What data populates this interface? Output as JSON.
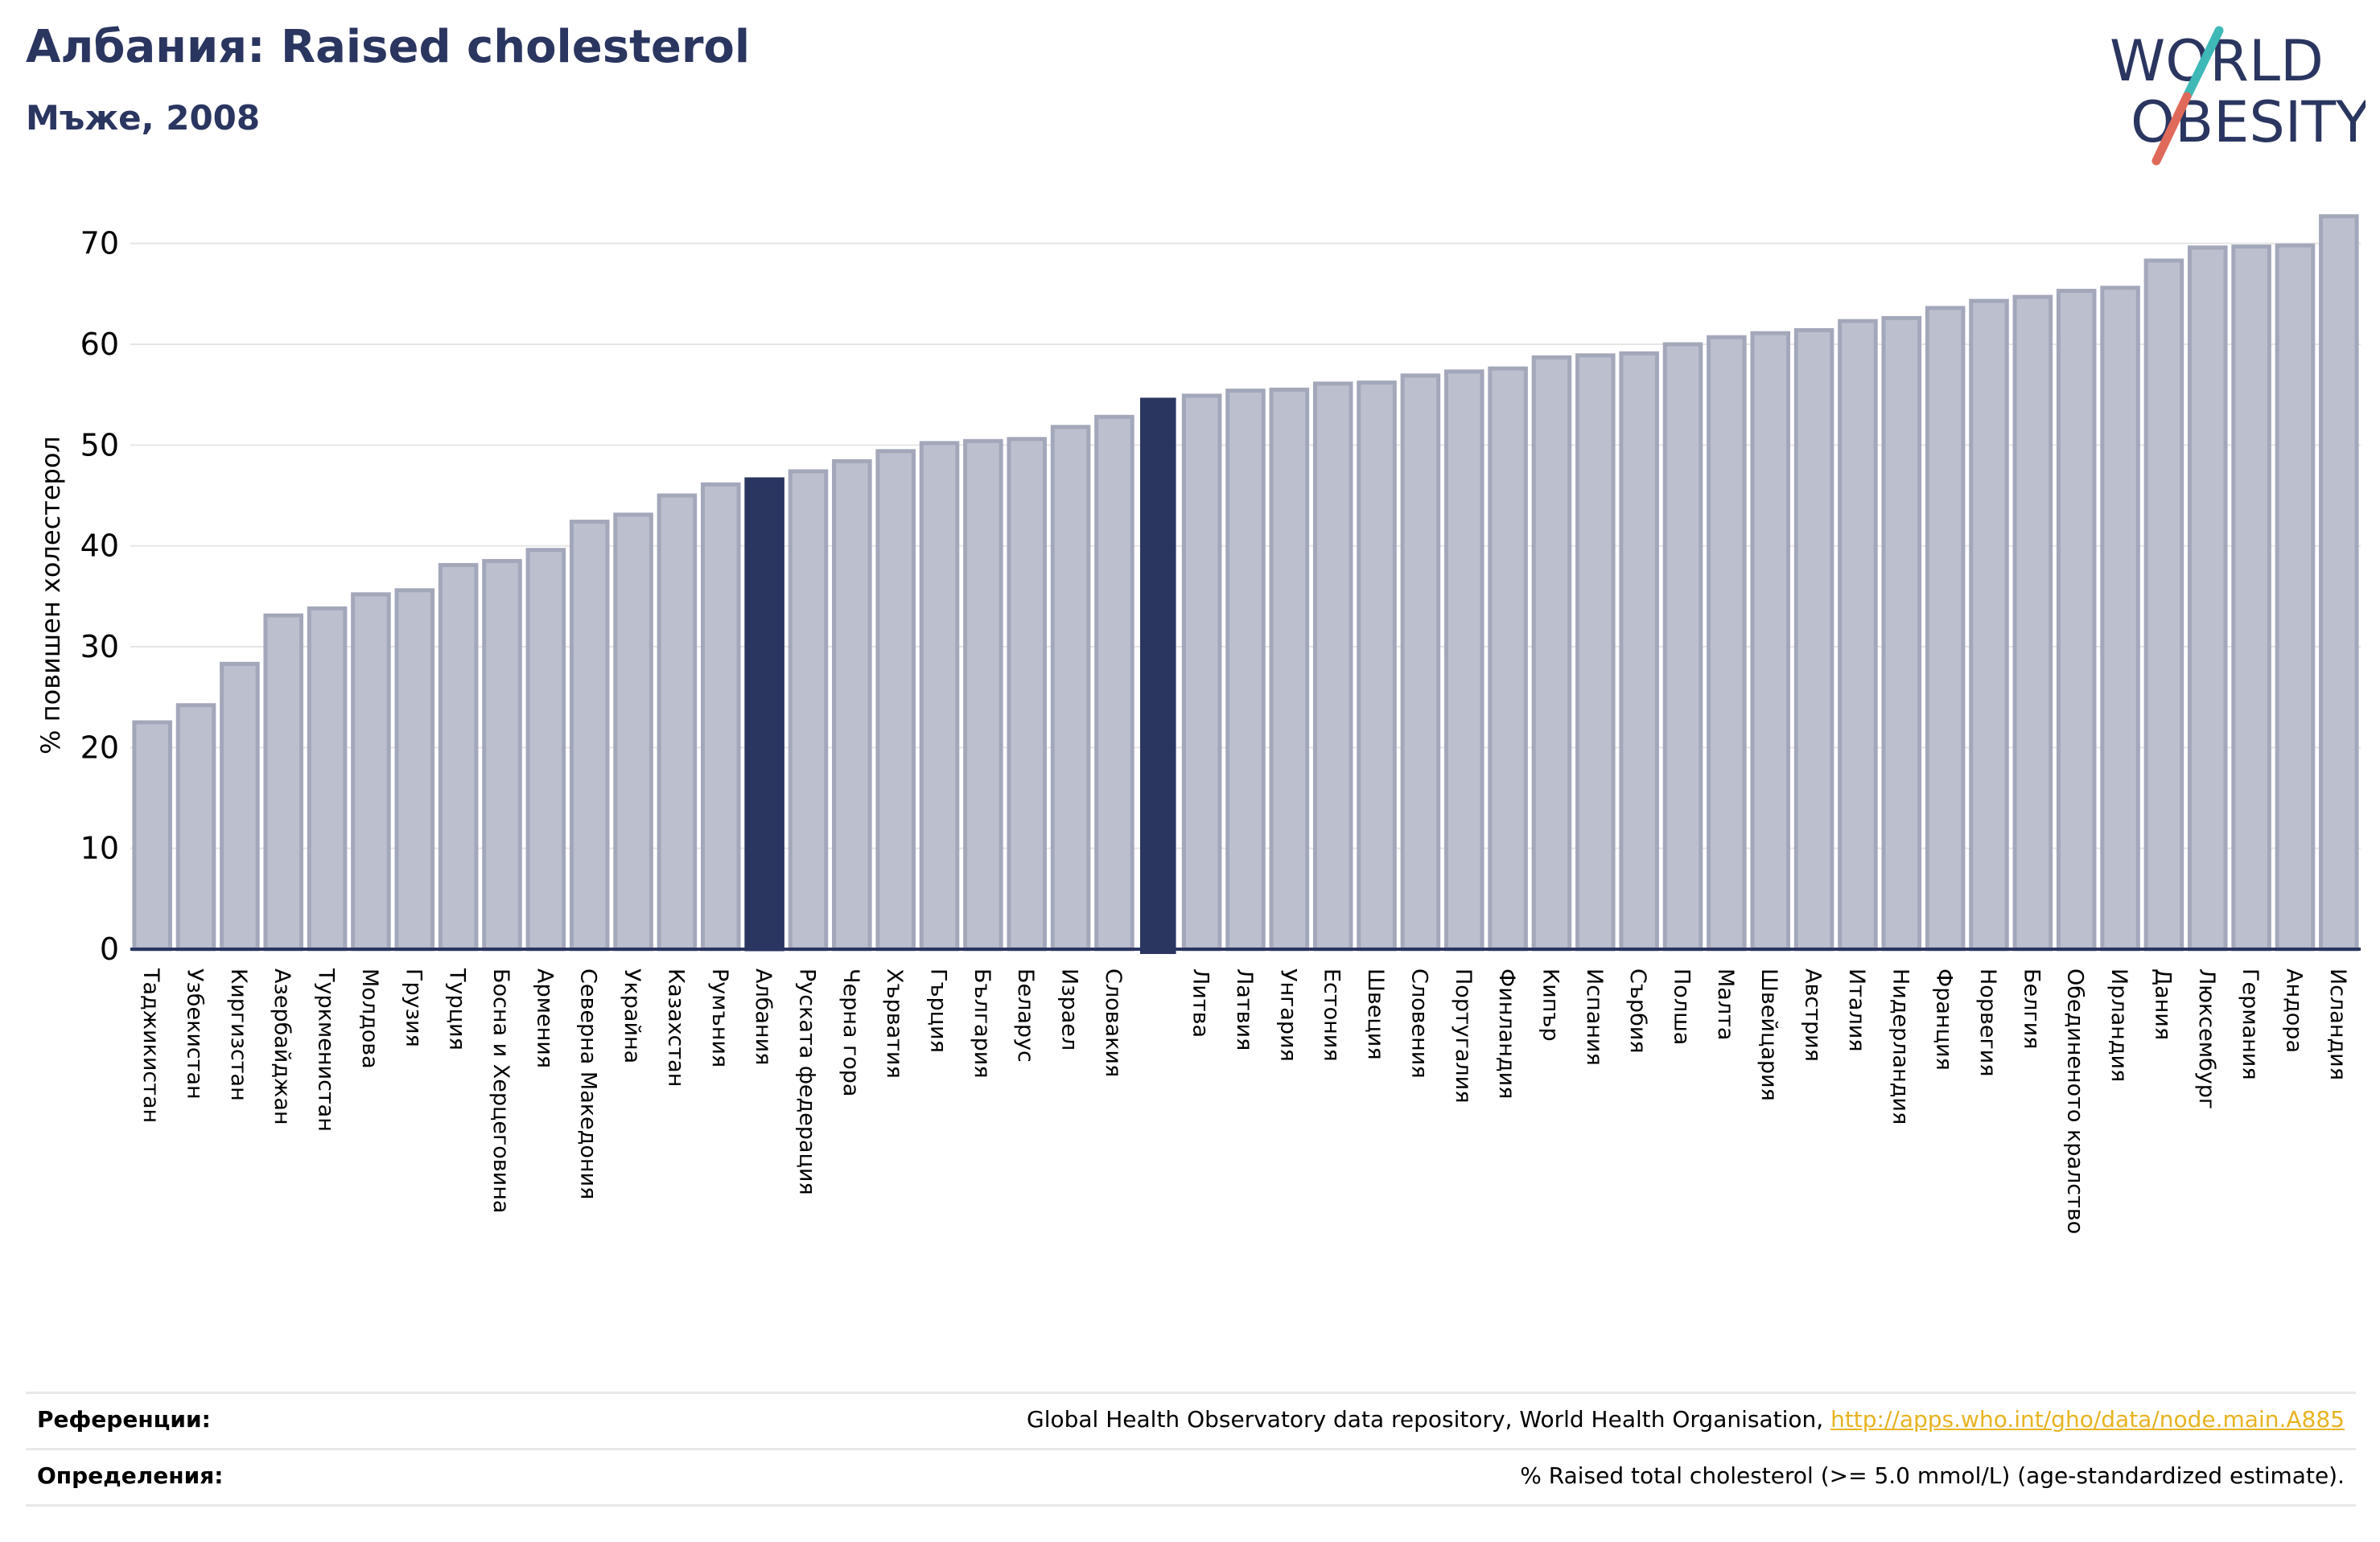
{
  "header": {
    "title": "Албания: Raised cholesterol",
    "subtitle": "Мъже, 2008"
  },
  "logo": {
    "line1": "WORLD",
    "line2": "OBESITY",
    "text_color": "#2a3560",
    "accent_teal": "#3fb8b8",
    "accent_coral": "#e06a5a"
  },
  "chart_data": {
    "type": "bar",
    "ylabel": "% повишен холестерол",
    "xlabel": "",
    "ylim": [
      0,
      75
    ],
    "yticks": [
      0,
      10,
      20,
      30,
      40,
      50,
      60,
      70
    ],
    "grid": true,
    "colors": {
      "bar": "#bcbfcd",
      "bar_edge": "#a3a7ba",
      "highlight": "#2a3560"
    },
    "highlight_index": 14,
    "gap_after_index": 22,
    "gap_bar_value": 54.7,
    "categories": [
      "Таджикистан",
      "Узбекистан",
      "Киргизстан",
      "Азербайджан",
      "Туркменистан",
      "Молдова",
      "Грузия",
      "Турция",
      "Босна и Херцеговина",
      "Армения",
      "Северна Македония",
      "Украйна",
      "Казахстан",
      "Румъния",
      "Албания",
      "Руската федерация",
      "Черна гора",
      "Хърватия",
      "Гърция",
      "България",
      "Беларус",
      "Израел",
      "Словакия",
      "Литва",
      "Латвия",
      "Унгария",
      "Естония",
      "Швеция",
      "Словения",
      "Португалия",
      "Финландия",
      "Кипър",
      "Испания",
      "Сърбия",
      "Полша",
      "Малта",
      "Швейцария",
      "Австрия",
      "Италия",
      "Нидерландия",
      "Франция",
      "Норвегия",
      "Белгия",
      "Обединеното кралство",
      "Ирландия",
      "Дания",
      "Люксембург",
      "Германия",
      "Андора",
      "Исландия"
    ],
    "values": [
      22.5,
      24.2,
      28.3,
      33.1,
      33.8,
      35.2,
      35.6,
      38.1,
      38.5,
      39.6,
      42.4,
      43.1,
      45.0,
      46.1,
      46.6,
      47.4,
      48.4,
      49.4,
      50.2,
      50.4,
      50.6,
      51.8,
      52.8,
      54.9,
      55.4,
      55.5,
      56.1,
      56.2,
      56.9,
      57.3,
      57.6,
      58.7,
      58.9,
      59.1,
      60.0,
      60.7,
      61.1,
      61.4,
      62.3,
      62.6,
      63.6,
      64.3,
      64.7,
      65.3,
      65.6,
      68.3,
      69.6,
      69.7,
      69.8,
      72.7
    ]
  },
  "footer": {
    "references_label": "Референции:",
    "references_text": "Global Health Observatory data repository, World Health Organisation, ",
    "references_link": "http://apps.who.int/gho/data/node.main.A885",
    "definitions_label": "Определения:",
    "definitions_text": "% Raised total cholesterol (>= 5.0 mmol/L) (age-standardized estimate)."
  }
}
